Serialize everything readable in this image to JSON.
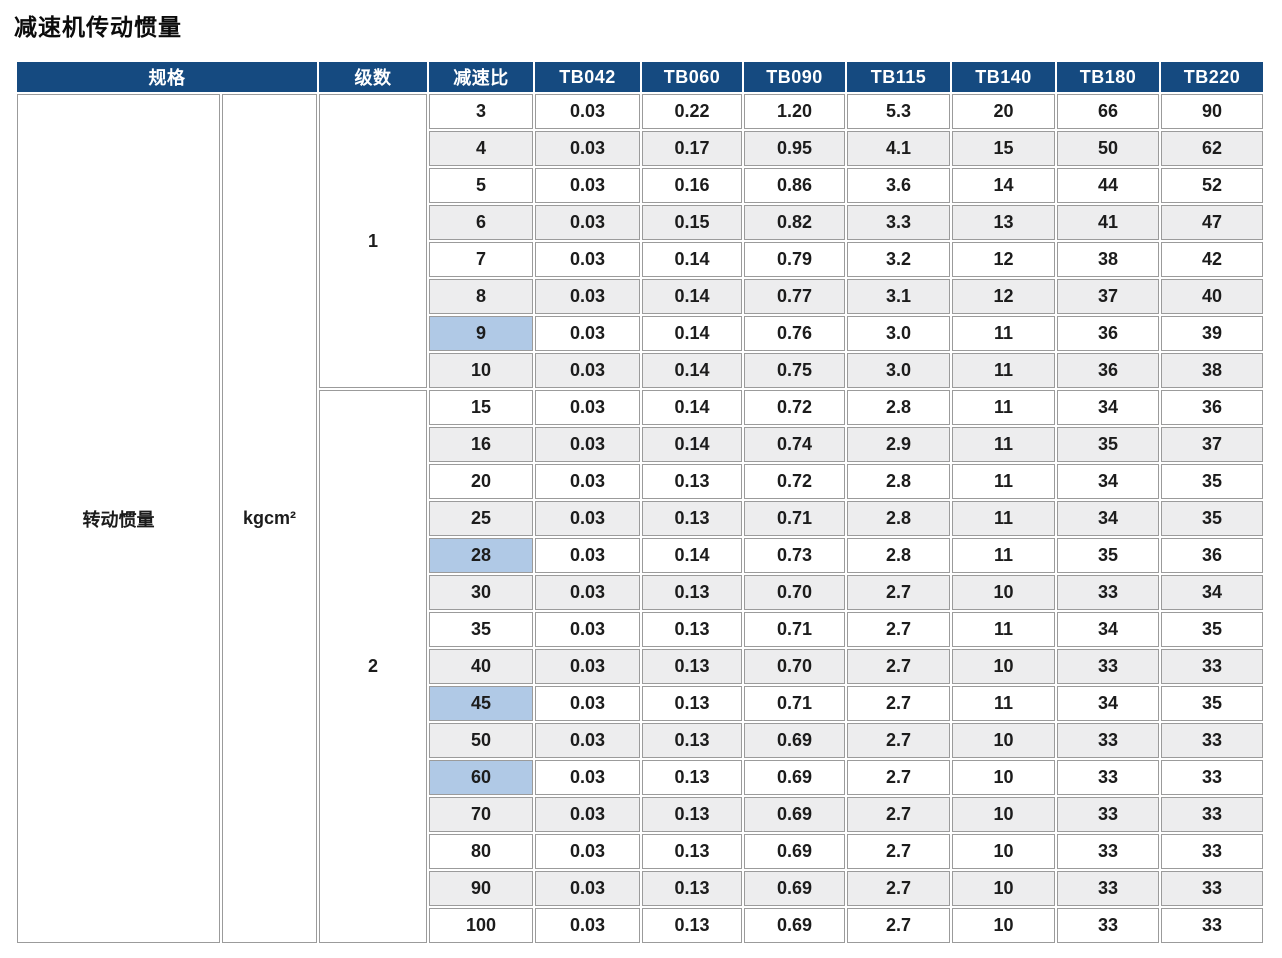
{
  "page": {
    "title": "减速机传动惯量"
  },
  "colors": {
    "header_bg": "#154a80",
    "highlight_bg": "#b0c9e6",
    "zebra_bg": "#ededee"
  },
  "table": {
    "header": {
      "spec": "规格",
      "stages": "级数",
      "ratio": "减速比",
      "models": [
        "TB042",
        "TB060",
        "TB090",
        "TB115",
        "TB140",
        "TB180",
        "TB220"
      ]
    },
    "row_label": "转动惯量",
    "unit": "kgcm²",
    "groups": [
      {
        "stage": "1",
        "rows": [
          {
            "ratio": "3",
            "highlight": false,
            "values": [
              "0.03",
              "0.22",
              "1.20",
              "5.3",
              "20",
              "66",
              "90"
            ]
          },
          {
            "ratio": "4",
            "highlight": false,
            "values": [
              "0.03",
              "0.17",
              "0.95",
              "4.1",
              "15",
              "50",
              "62"
            ]
          },
          {
            "ratio": "5",
            "highlight": false,
            "values": [
              "0.03",
              "0.16",
              "0.86",
              "3.6",
              "14",
              "44",
              "52"
            ]
          },
          {
            "ratio": "6",
            "highlight": true,
            "values": [
              "0.03",
              "0.15",
              "0.82",
              "3.3",
              "13",
              "41",
              "47"
            ]
          },
          {
            "ratio": "7",
            "highlight": false,
            "values": [
              "0.03",
              "0.14",
              "0.79",
              "3.2",
              "12",
              "38",
              "42"
            ]
          },
          {
            "ratio": "8",
            "highlight": false,
            "values": [
              "0.03",
              "0.14",
              "0.77",
              "3.1",
              "12",
              "37",
              "40"
            ]
          },
          {
            "ratio": "9",
            "highlight": true,
            "values": [
              "0.03",
              "0.14",
              "0.76",
              "3.0",
              "11",
              "36",
              "39"
            ]
          },
          {
            "ratio": "10",
            "highlight": false,
            "values": [
              "0.03",
              "0.14",
              "0.75",
              "3.0",
              "11",
              "36",
              "38"
            ]
          }
        ]
      },
      {
        "stage": "2",
        "rows": [
          {
            "ratio": "15",
            "highlight": false,
            "values": [
              "0.03",
              "0.14",
              "0.72",
              "2.8",
              "11",
              "34",
              "36"
            ]
          },
          {
            "ratio": "16",
            "highlight": true,
            "values": [
              "0.03",
              "0.14",
              "0.74",
              "2.9",
              "11",
              "35",
              "37"
            ]
          },
          {
            "ratio": "20",
            "highlight": false,
            "values": [
              "0.03",
              "0.13",
              "0.72",
              "2.8",
              "11",
              "34",
              "35"
            ]
          },
          {
            "ratio": "25",
            "highlight": false,
            "values": [
              "0.03",
              "0.13",
              "0.71",
              "2.8",
              "11",
              "34",
              "35"
            ]
          },
          {
            "ratio": "28",
            "highlight": true,
            "values": [
              "0.03",
              "0.14",
              "0.73",
              "2.8",
              "11",
              "35",
              "36"
            ]
          },
          {
            "ratio": "30",
            "highlight": false,
            "values": [
              "0.03",
              "0.13",
              "0.70",
              "2.7",
              "10",
              "33",
              "34"
            ]
          },
          {
            "ratio": "35",
            "highlight": false,
            "values": [
              "0.03",
              "0.13",
              "0.71",
              "2.7",
              "11",
              "34",
              "35"
            ]
          },
          {
            "ratio": "40",
            "highlight": false,
            "values": [
              "0.03",
              "0.13",
              "0.70",
              "2.7",
              "10",
              "33",
              "33"
            ]
          },
          {
            "ratio": "45",
            "highlight": true,
            "values": [
              "0.03",
              "0.13",
              "0.71",
              "2.7",
              "11",
              "34",
              "35"
            ]
          },
          {
            "ratio": "50",
            "highlight": false,
            "values": [
              "0.03",
              "0.13",
              "0.69",
              "2.7",
              "10",
              "33",
              "33"
            ]
          },
          {
            "ratio": "60",
            "highlight": true,
            "values": [
              "0.03",
              "0.13",
              "0.69",
              "2.7",
              "10",
              "33",
              "33"
            ]
          },
          {
            "ratio": "70",
            "highlight": false,
            "values": [
              "0.03",
              "0.13",
              "0.69",
              "2.7",
              "10",
              "33",
              "33"
            ]
          },
          {
            "ratio": "80",
            "highlight": false,
            "values": [
              "0.03",
              "0.13",
              "0.69",
              "2.7",
              "10",
              "33",
              "33"
            ]
          },
          {
            "ratio": "90",
            "highlight": true,
            "values": [
              "0.03",
              "0.13",
              "0.69",
              "2.7",
              "10",
              "33",
              "33"
            ]
          },
          {
            "ratio": "100",
            "highlight": false,
            "values": [
              "0.03",
              "0.13",
              "0.69",
              "2.7",
              "10",
              "33",
              "33"
            ]
          }
        ]
      }
    ]
  }
}
